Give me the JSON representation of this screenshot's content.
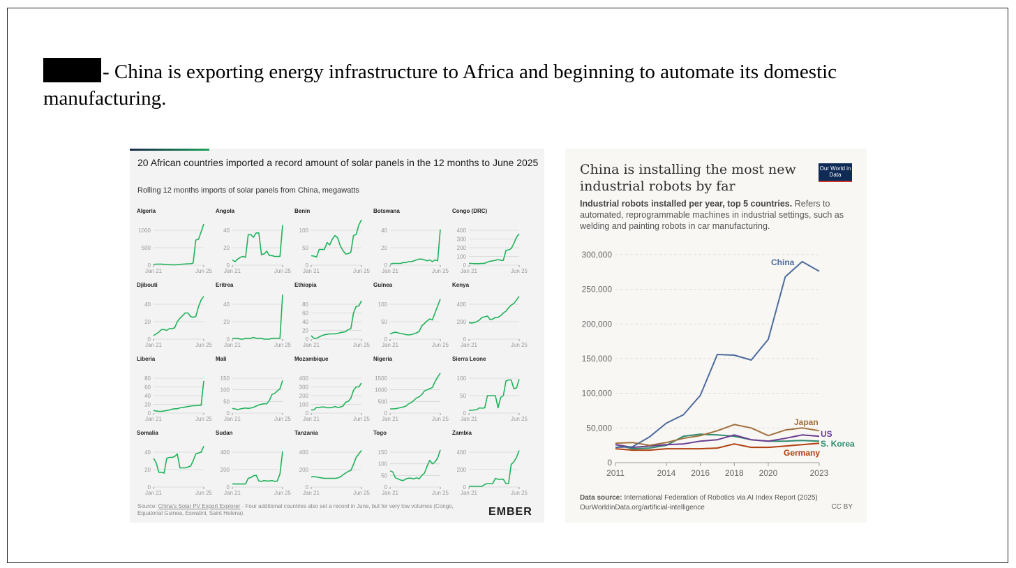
{
  "slide": {
    "headline": "- China is exporting energy infrastructure to Africa and beginning to automate its domestic manufacturing."
  },
  "left_chart_meta": {
    "title": "20 African countries imported a record amount of solar panels in the 12 months to June 2025",
    "subtitle": "Rolling 12 months imports of solar panels from China, megawatts",
    "source_label": "Source: ",
    "source_link": "China's Solar PV Export Explorer",
    "source_note": " · Four additional countries also set a record in June, but for very low volumes (Congo, Equatorial Guinea, Eswatini, Saint Helena).",
    "logo": "EMBER"
  },
  "right_chart_meta": {
    "title": "China is installing the most new industrial robots by far",
    "logo": "Our World in Data",
    "subtitle_bold": "Industrial robots installed per year, top 5 countries.",
    "subtitle_rest": " Refers to automated, reprogrammable machines in industrial settings, such as welding and painting robots in car manufacturing.",
    "source_bold": "Data source:",
    "source_text": " International Federation of Robotics via AI Index Report (2025)",
    "url": "OurWorldinData.org/artificial-intelligence",
    "license": "CC BY"
  },
  "chart_data": [
    {
      "type": "line",
      "title": "20 African countries imported a record amount of solar panels in the 12 months to June 2025",
      "ylabel": "megawatts",
      "x_start": "Jan 21",
      "x_end": "Jun 25",
      "color": "#1fb25a",
      "panels": [
        {
          "name": "Algeria",
          "yticks": [
            0,
            500,
            1000
          ],
          "values": [
            20,
            30,
            30,
            30,
            25,
            20,
            15,
            10,
            10,
            15,
            20,
            30,
            35,
            40,
            40,
            60,
            720,
            740,
            950,
            1180
          ]
        },
        {
          "name": "Angola",
          "yticks": [
            0,
            20,
            40
          ],
          "values": [
            6,
            4,
            7,
            9,
            10,
            9,
            35,
            35,
            32,
            37,
            37,
            12,
            13,
            16,
            11,
            11,
            10,
            10,
            10,
            46
          ]
        },
        {
          "name": "Benin",
          "yticks": [
            0,
            50,
            100
          ],
          "values": [
            27,
            26,
            23,
            45,
            45,
            45,
            65,
            58,
            75,
            85,
            78,
            55,
            42,
            32,
            33,
            37,
            85,
            88,
            115,
            130
          ]
        },
        {
          "name": "Botswana",
          "yticks": [
            0,
            20,
            40
          ],
          "values": [
            1,
            2,
            2,
            2,
            2,
            3,
            3,
            4,
            4,
            5,
            6,
            7,
            7,
            6,
            5,
            6,
            4,
            6,
            5,
            41
          ]
        },
        {
          "name": "Congo (DRC)",
          "yticks": [
            0,
            100,
            200,
            300,
            400
          ],
          "values": [
            20,
            20,
            18,
            18,
            18,
            20,
            22,
            35,
            45,
            50,
            55,
            65,
            55,
            55,
            170,
            175,
            190,
            250,
            320,
            360
          ]
        },
        {
          "name": "Djibouti",
          "yticks": [
            0,
            20,
            40
          ],
          "values": [
            4,
            6,
            8,
            11,
            11,
            10,
            12,
            12,
            13,
            20,
            24,
            27,
            30,
            30,
            26,
            25,
            26,
            37,
            45,
            49
          ]
        },
        {
          "name": "Eritrea",
          "yticks": [
            0,
            20,
            40
          ],
          "values": [
            1,
            1,
            1,
            0,
            0,
            1,
            1,
            1,
            2,
            1,
            1,
            1,
            0,
            0,
            0,
            1,
            1,
            1,
            1,
            51
          ]
        },
        {
          "name": "Ethiopia",
          "yticks": [
            0,
            20,
            40,
            60,
            80
          ],
          "values": [
            8,
            2,
            2,
            5,
            8,
            10,
            11,
            12,
            12,
            12,
            13,
            15,
            16,
            17,
            22,
            24,
            60,
            75,
            76,
            88
          ]
        },
        {
          "name": "Guinea",
          "yticks": [
            0,
            50,
            100
          ],
          "values": [
            15,
            18,
            20,
            18,
            16,
            15,
            13,
            12,
            13,
            15,
            18,
            22,
            38,
            45,
            52,
            58,
            55,
            75,
            95,
            115
          ]
        },
        {
          "name": "Kenya",
          "yticks": [
            0,
            200,
            400
          ],
          "values": [
            190,
            185,
            190,
            200,
            220,
            250,
            255,
            265,
            225,
            230,
            250,
            250,
            270,
            300,
            320,
            360,
            390,
            410,
            450,
            490
          ]
        },
        {
          "name": "Liberia",
          "yticks": [
            0,
            20,
            40,
            60,
            80
          ],
          "values": [
            6,
            5,
            4,
            4,
            5,
            6,
            7,
            9,
            10,
            10,
            12,
            13,
            14,
            15,
            16,
            17,
            17,
            18,
            18,
            74
          ]
        },
        {
          "name": "Mali",
          "yticks": [
            0,
            50,
            100,
            150
          ],
          "values": [
            20,
            18,
            15,
            18,
            20,
            22,
            20,
            22,
            25,
            30,
            35,
            38,
            40,
            40,
            55,
            80,
            85,
            95,
            105,
            140
          ]
        },
        {
          "name": "Mozambique",
          "yticks": [
            0,
            100,
            200,
            300,
            400
          ],
          "values": [
            35,
            38,
            65,
            65,
            70,
            70,
            62,
            62,
            65,
            75,
            65,
            70,
            80,
            125,
            135,
            170,
            260,
            300,
            300,
            345
          ]
        },
        {
          "name": "Nigeria",
          "yticks": [
            0,
            500,
            1000,
            1500
          ],
          "values": [
            180,
            180,
            190,
            210,
            240,
            260,
            300,
            400,
            450,
            550,
            650,
            700,
            800,
            950,
            1000,
            1050,
            1100,
            1350,
            1550,
            1720
          ]
        },
        {
          "name": "Sierra Leone",
          "yticks": [
            0,
            50,
            100
          ],
          "values": [
            8,
            8,
            9,
            10,
            15,
            14,
            15,
            50,
            50,
            50,
            50,
            15,
            45,
            50,
            92,
            95,
            95,
            70,
            72,
            97
          ]
        },
        {
          "name": "Somalia",
          "yticks": [
            0,
            20,
            40
          ],
          "values": [
            33,
            28,
            17,
            17,
            16,
            33,
            34,
            34,
            35,
            38,
            22,
            22,
            22,
            23,
            24,
            30,
            38,
            39,
            40,
            47
          ]
        },
        {
          "name": "Sudan",
          "yticks": [
            0,
            200,
            400
          ],
          "values": [
            35,
            35,
            35,
            35,
            35,
            35,
            100,
            110,
            130,
            135,
            70,
            65,
            75,
            70,
            70,
            75,
            65,
            70,
            150,
            410
          ]
        },
        {
          "name": "Tanzania",
          "yticks": [
            0,
            200,
            400
          ],
          "values": [
            115,
            120,
            115,
            110,
            105,
            100,
            100,
            100,
            100,
            100,
            105,
            115,
            140,
            160,
            180,
            190,
            260,
            340,
            380,
            420
          ]
        },
        {
          "name": "Togo",
          "yticks": [
            0,
            50,
            100,
            150
          ],
          "values": [
            70,
            65,
            40,
            35,
            30,
            28,
            35,
            38,
            38,
            35,
            40,
            35,
            50,
            60,
            90,
            115,
            100,
            108,
            125,
            160
          ]
        },
        {
          "name": "Zambia",
          "yticks": [
            0,
            200,
            400
          ],
          "values": [
            10,
            8,
            8,
            8,
            8,
            10,
            30,
            40,
            40,
            40,
            100,
            90,
            90,
            90,
            40,
            40,
            260,
            290,
            340,
            420
          ]
        }
      ]
    },
    {
      "type": "line",
      "title": "China is installing the most new industrial robots by far",
      "xlabel": "",
      "ylabel": "Industrial robots installed per year",
      "ylim": [
        0,
        300000
      ],
      "yticks": [
        0,
        50000,
        100000,
        150000,
        200000,
        250000,
        300000
      ],
      "ytick_labels": [
        "0",
        "50,000",
        "100,000",
        "150,000",
        "200,000",
        "250,000",
        "300,000"
      ],
      "xticks": [
        2011,
        2014,
        2016,
        2018,
        2020,
        2023
      ],
      "x": [
        2011,
        2012,
        2013,
        2014,
        2015,
        2016,
        2017,
        2018,
        2019,
        2020,
        2021,
        2022,
        2023
      ],
      "series": [
        {
          "name": "China",
          "color": "#4c6a9c",
          "values": [
            22000,
            23000,
            37000,
            57000,
            69000,
            97000,
            156000,
            155000,
            148000,
            178000,
            268000,
            290000,
            276000
          ]
        },
        {
          "name": "Japan",
          "color": "#a0703c",
          "values": [
            28000,
            29000,
            25000,
            29000,
            35000,
            39000,
            46000,
            55000,
            50000,
            39000,
            47000,
            50000,
            46000
          ]
        },
        {
          "name": "US",
          "color": "#6b3d92",
          "values": [
            26000,
            22000,
            24000,
            26000,
            27000,
            31000,
            33000,
            40000,
            33000,
            31000,
            35000,
            40000,
            38000
          ]
        },
        {
          "name": "S. Korea",
          "color": "#2f8a6f",
          "values": [
            26000,
            20000,
            21000,
            25000,
            38000,
            41000,
            40000,
            38000,
            33000,
            31000,
            31000,
            32000,
            31000
          ]
        },
        {
          "name": "Germany",
          "color": "#b0400f",
          "values": [
            20000,
            18000,
            18000,
            20000,
            20000,
            20000,
            21000,
            27000,
            22000,
            22000,
            24000,
            26000,
            28000
          ]
        }
      ]
    }
  ]
}
